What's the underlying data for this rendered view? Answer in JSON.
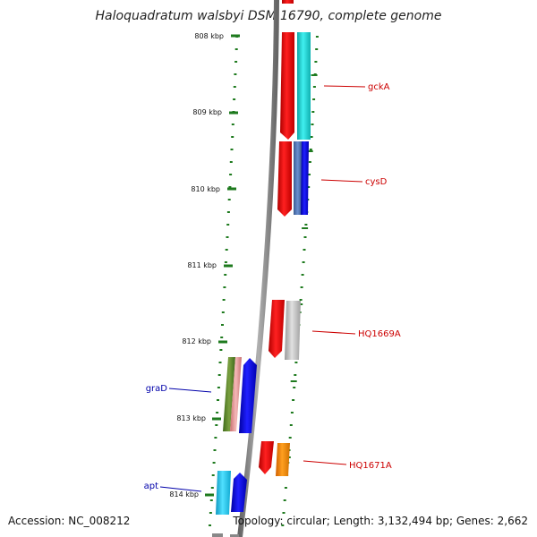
{
  "title": "Haloquadratum walsbyi DSM 16790, complete genome",
  "footer": {
    "accession": "Accession: NC_008212",
    "summary": "Topology: circular; Length: 3,132,494 bp; Genes: 2,662"
  },
  "ticks": [
    "808 kbp",
    "809 kbp",
    "810 kbp",
    "811 kbp",
    "812 kbp",
    "813 kbp",
    "814 kbp"
  ],
  "gene_labels": [
    {
      "text": "gckA",
      "color": "#cc0000"
    },
    {
      "text": "cysD",
      "color": "#cc0000"
    },
    {
      "text": "HQ1669A",
      "color": "#cc0000"
    },
    {
      "text": "HQ1671A",
      "color": "#cc0000"
    },
    {
      "text": "graD",
      "color": "#0000aa"
    },
    {
      "text": "apt",
      "color": "#0000aa"
    }
  ],
  "colors": {
    "tick": "#1e7a1e",
    "backbone": "#888888",
    "red": "#ee0000",
    "cyan": "#1fd0d0",
    "blue": "#0000ee",
    "steel": "#4a6fb0",
    "grey": "#bbbbbb",
    "orange": "#ff8800",
    "olive": "#5f8a2a",
    "pink": "#e8a0a0",
    "skyblue": "#33ccee"
  }
}
